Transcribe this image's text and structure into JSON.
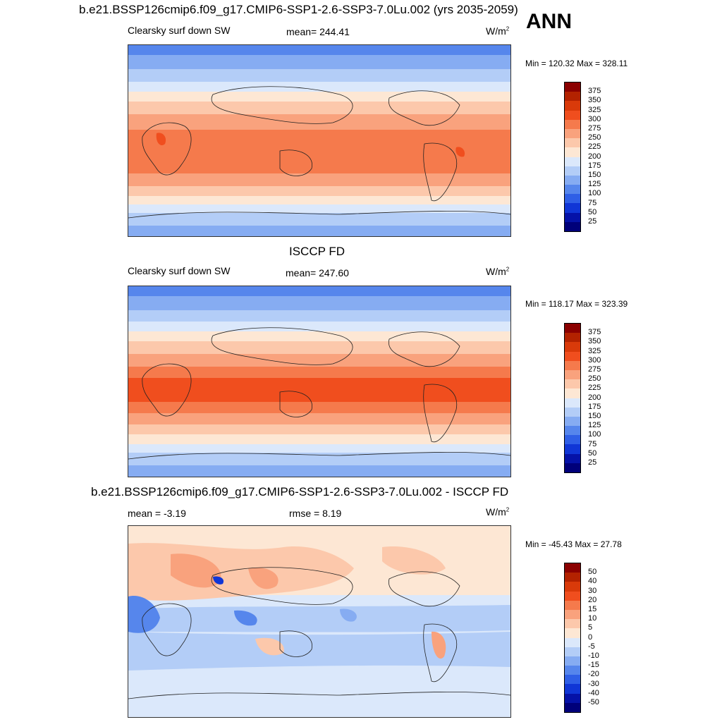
{
  "ann_label": "ANN",
  "panels": [
    {
      "id": "model",
      "title": "b.e21.BSSP126cmip6.f09_g17.CMIP6-SSP1-2.6-SSP3-7.0Lu.002 (yrs 2035-2059)",
      "variable": "Clearsky surf down SW",
      "stat_left": "",
      "stat_center": "mean= 244.41",
      "units_base": "W/m",
      "units_sup": "2",
      "minmax": "Min = 120.32 Max = 328.11",
      "colorbar_labels": [
        "375",
        "350",
        "325",
        "300",
        "275",
        "250",
        "225",
        "200",
        "175",
        "150",
        "125",
        "100",
        "75",
        "50",
        "25"
      ]
    },
    {
      "id": "obs",
      "title": "ISCCP FD",
      "variable": "Clearsky surf down SW",
      "stat_left": "",
      "stat_center": "mean= 247.60",
      "units_base": "W/m",
      "units_sup": "2",
      "minmax": "Min = 118.17 Max = 323.39",
      "colorbar_labels": [
        "375",
        "350",
        "325",
        "300",
        "275",
        "250",
        "225",
        "200",
        "175",
        "150",
        "125",
        "100",
        "75",
        "50",
        "25"
      ]
    },
    {
      "id": "diff",
      "title": "b.e21.BSSP126cmip6.f09_g17.CMIP6-SSP1-2.6-SSP3-7.0Lu.002 - ISCCP FD",
      "variable": "mean =  -3.19",
      "stat_center": "rmse =   8.19",
      "units_base": "W/m",
      "units_sup": "2",
      "minmax": "Min = -45.43 Max =  27.78",
      "colorbar_labels": [
        "50",
        "40",
        "30",
        "20",
        "15",
        "10",
        "5",
        "0",
        "-5",
        "-10",
        "-15",
        "-20",
        "-30",
        "-40",
        "-50"
      ]
    }
  ],
  "colors": {
    "abs_scale": [
      "#8b0000",
      "#b32200",
      "#d93a0a",
      "#f04e1e",
      "#f57a4c",
      "#f9a27d",
      "#fcc8ab",
      "#fde7d4",
      "#dbe8fb",
      "#b3cdf7",
      "#86acf2",
      "#5686ec",
      "#2f5fe6",
      "#1036d6",
      "#0512a8",
      "#00007a"
    ],
    "diff_scale": [
      "#8b0000",
      "#b32200",
      "#d93a0a",
      "#f04e1e",
      "#f57a4c",
      "#f9a27d",
      "#fcc8ab",
      "#fde7d4",
      "#dbe8fb",
      "#b3cdf7",
      "#86acf2",
      "#5686ec",
      "#2f5fe6",
      "#1036d6",
      "#0512a8",
      "#00007a"
    ]
  }
}
